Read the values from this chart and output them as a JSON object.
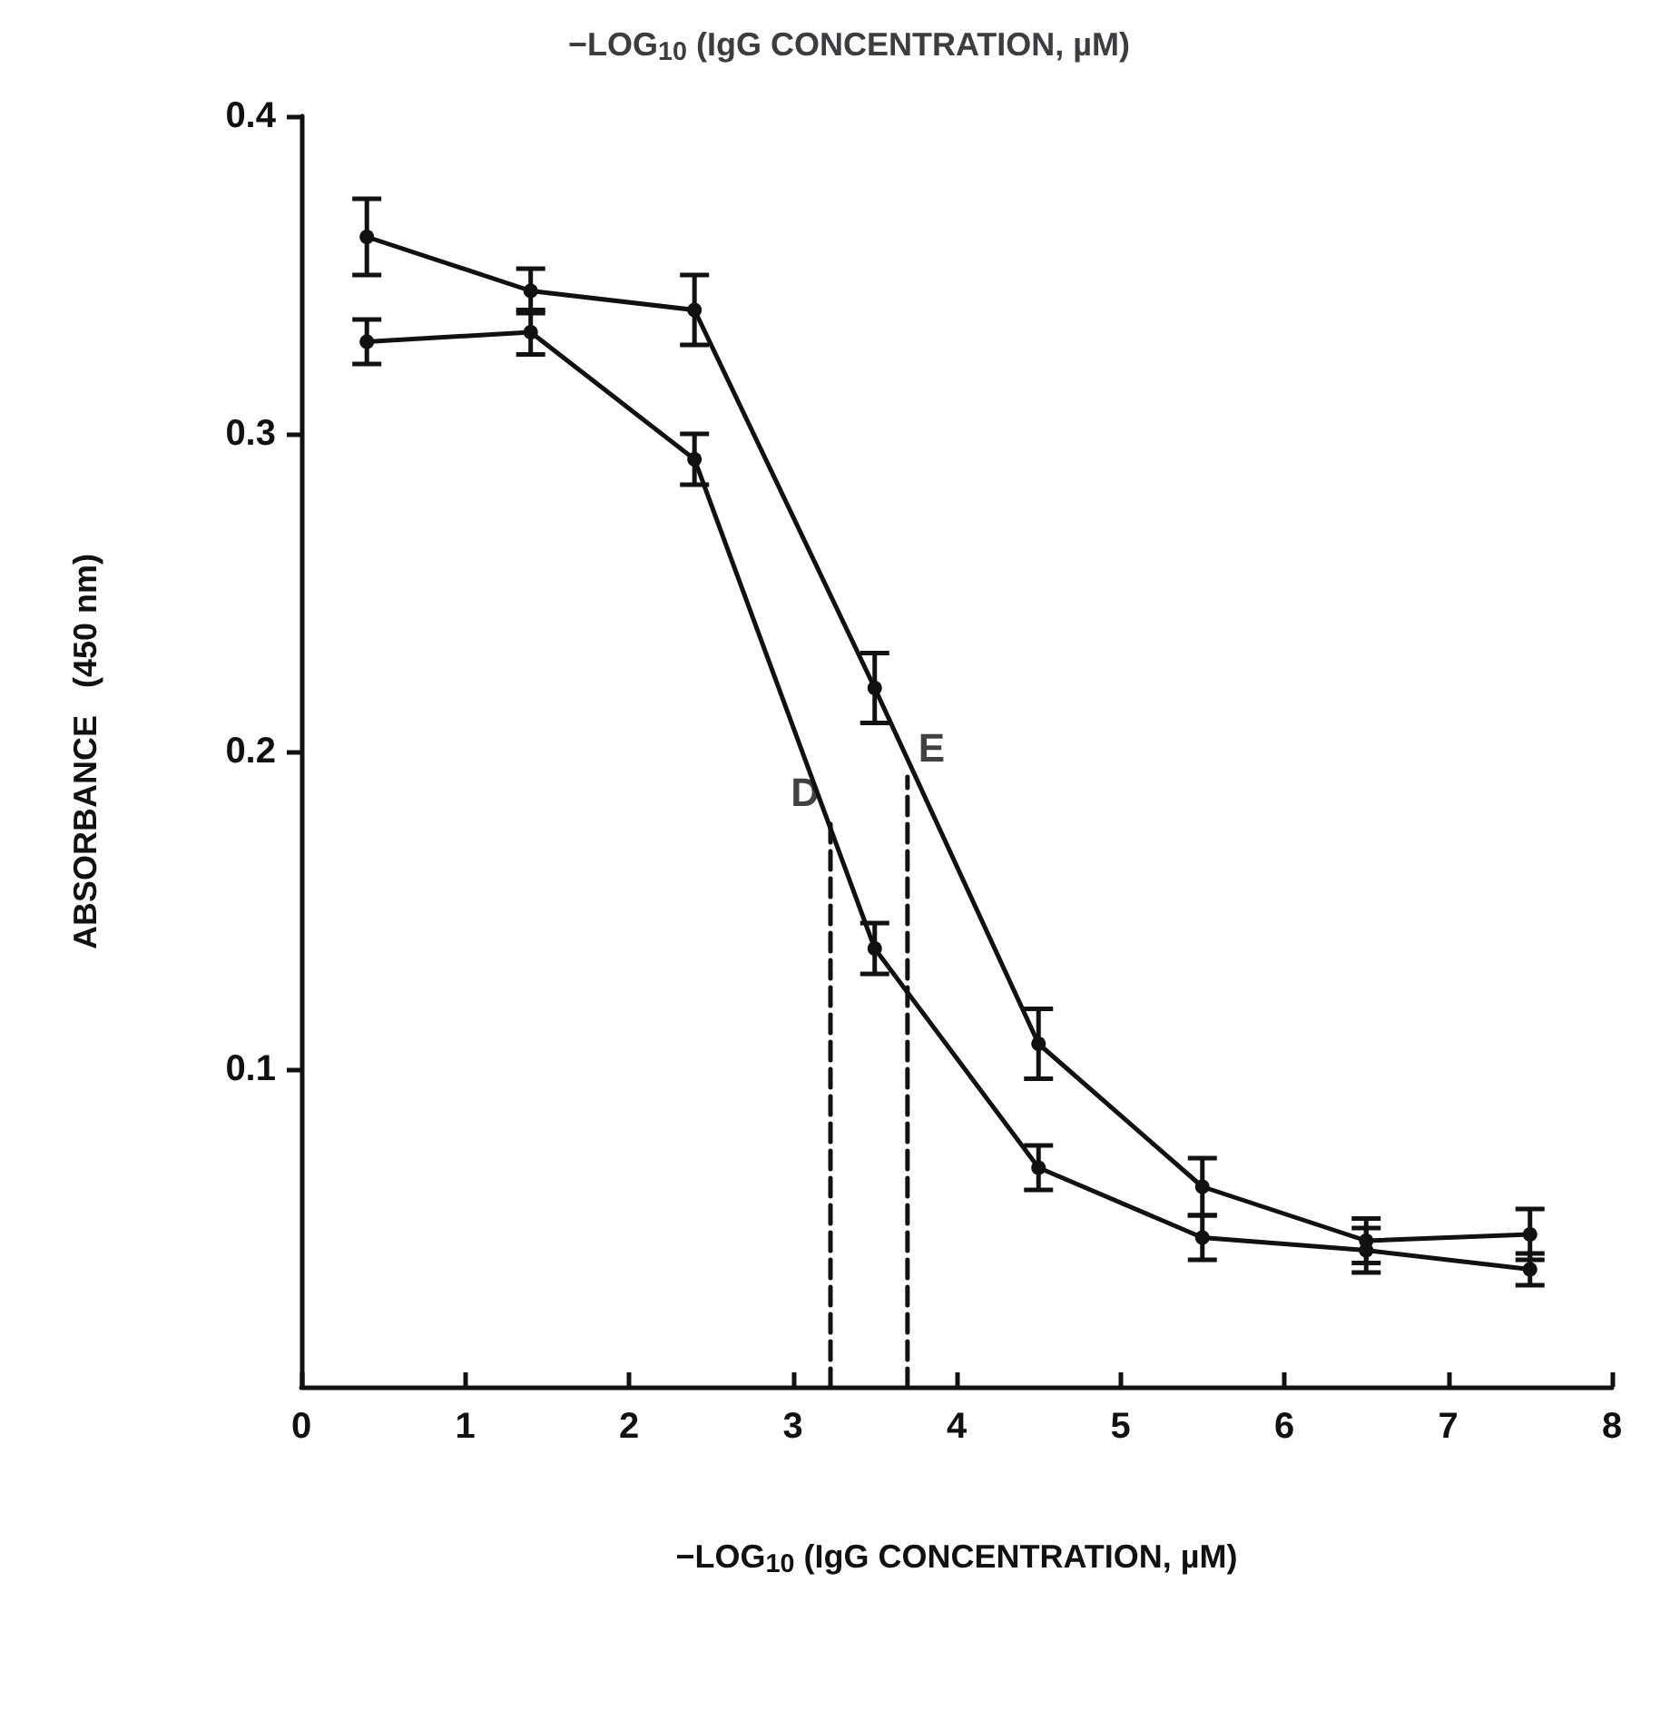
{
  "chart_data": {
    "type": "line",
    "title": "−LOG$_{10}$ (IgG CONCENTRATION, µM)",
    "xlabel": "−LOG$_{10}$ (IgG CONCENTRATION, µM)",
    "ylabel": "ABSORBANCE   (450 nm)",
    "series": [
      {
        "color": "#111111",
        "x": [
          0.4,
          1.4,
          2.4,
          3.5,
          4.5,
          5.5,
          6.5,
          7.5
        ],
        "values": [
          0.362,
          0.345,
          0.339,
          0.22,
          0.108,
          0.063,
          0.046,
          0.048
        ],
        "errors": [
          0.012,
          0.007,
          0.011,
          0.011,
          0.011,
          0.009,
          0.007,
          0.008
        ]
      },
      {
        "color": "#111111",
        "x": [
          0.4,
          1.4,
          2.4,
          3.5,
          4.5,
          5.5,
          6.5,
          7.5
        ],
        "values": [
          0.329,
          0.332,
          0.292,
          0.138,
          0.069,
          0.047,
          0.043,
          0.037
        ],
        "errors": [
          0.007,
          0.007,
          0.008,
          0.008,
          0.007,
          0.007,
          0.007,
          0.005
        ]
      },
      {
        "color": "#111111",
        "x": [
          3.23,
          3.23
        ],
        "values": [
          0,
          0.178
        ],
        "line_style": "dashed",
        "marker": "none"
      },
      {
        "color": "#111111",
        "x": [
          3.7,
          3.7
        ],
        "values": [
          0,
          0.192
        ],
        "line_style": "dashed",
        "marker": "none"
      }
    ],
    "annotations": [
      {
        "text": "D",
        "x": 3.23,
        "y": 0.178
      },
      {
        "text": "E",
        "x": 3.7,
        "y": 0.192
      }
    ],
    "xlim": [
      0,
      8
    ],
    "xticks": [
      0,
      1,
      2,
      3,
      4,
      5,
      6,
      7,
      8
    ],
    "ylim": [
      0,
      0.4
    ],
    "yticks": [
      0.1,
      0.2,
      0.3,
      0.4
    ],
    "marker": "circle",
    "line_style": "solid"
  }
}
